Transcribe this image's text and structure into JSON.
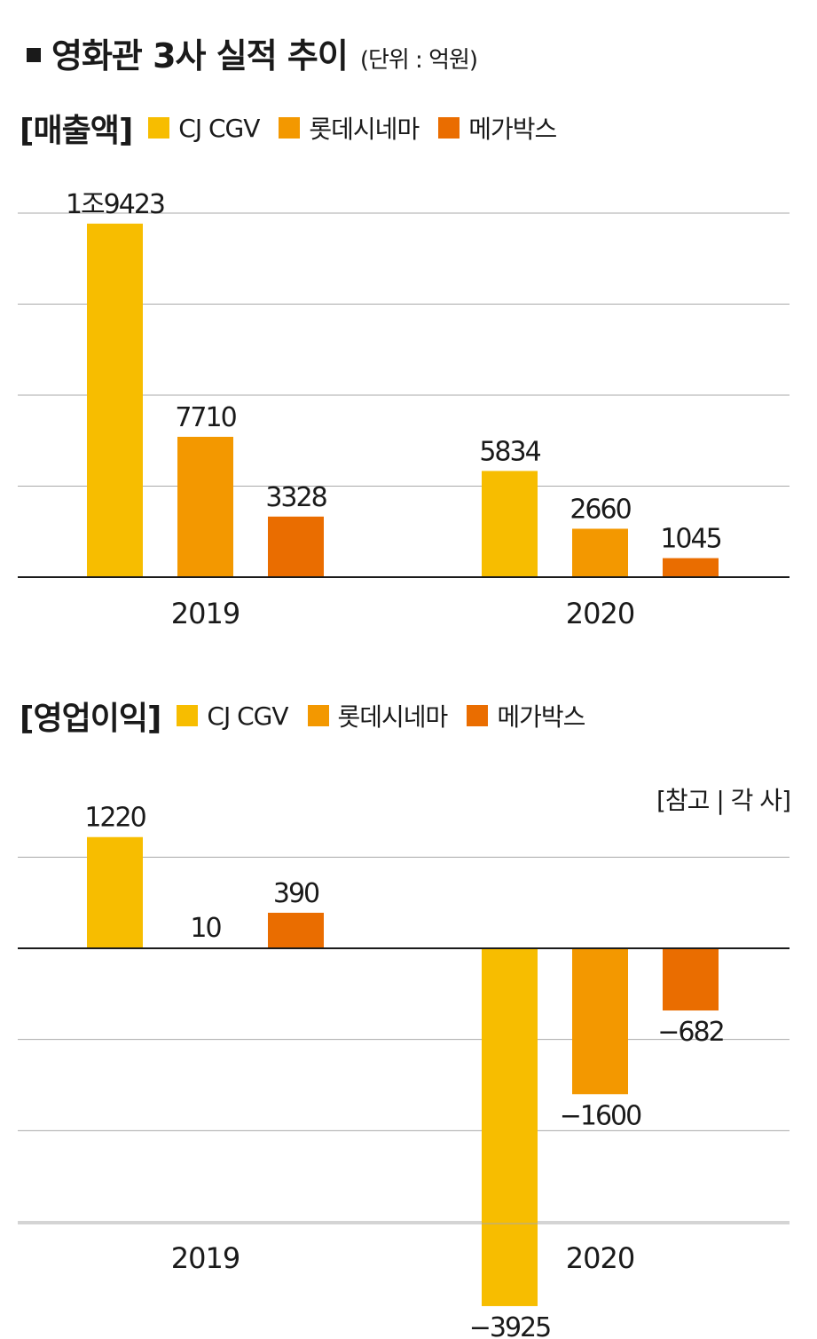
{
  "header": {
    "title": "영화관 3사 실적 추이",
    "unit": "(단위 : 억원)"
  },
  "source": "[참고 |  각 사]",
  "colors": {
    "CJ CGV": "#f7bd00",
    "롯데시네마": "#f39800",
    "메가박스": "#ea6d00"
  },
  "chart_data": [
    {
      "type": "bar",
      "title": "[매출액]",
      "categories": [
        "2019",
        "2020"
      ],
      "series": [
        {
          "name": "CJ CGV",
          "values": [
            19423,
            5834
          ],
          "labels": [
            "1조9423",
            "5834"
          ]
        },
        {
          "name": "롯데시네마",
          "values": [
            7710,
            2660
          ],
          "labels": [
            "7710",
            "2660"
          ]
        },
        {
          "name": "메가박스",
          "values": [
            3328,
            1045
          ],
          "labels": [
            "3328",
            "1045"
          ]
        }
      ],
      "ylim": [
        0,
        20000
      ],
      "grid": true
    },
    {
      "type": "bar",
      "title": "[영업이익]",
      "categories": [
        "2019",
        "2020"
      ],
      "series": [
        {
          "name": "CJ CGV",
          "values": [
            1220,
            -3925
          ],
          "labels": [
            "1220",
            "−3925"
          ]
        },
        {
          "name": "롯데시네마",
          "values": [
            10,
            -1600
          ],
          "labels": [
            "10",
            "−1600"
          ]
        },
        {
          "name": "메가박스",
          "values": [
            390,
            -682
          ],
          "labels": [
            "390",
            "−682"
          ]
        }
      ],
      "ylim": [
        -4500,
        1500
      ],
      "grid": true
    }
  ]
}
